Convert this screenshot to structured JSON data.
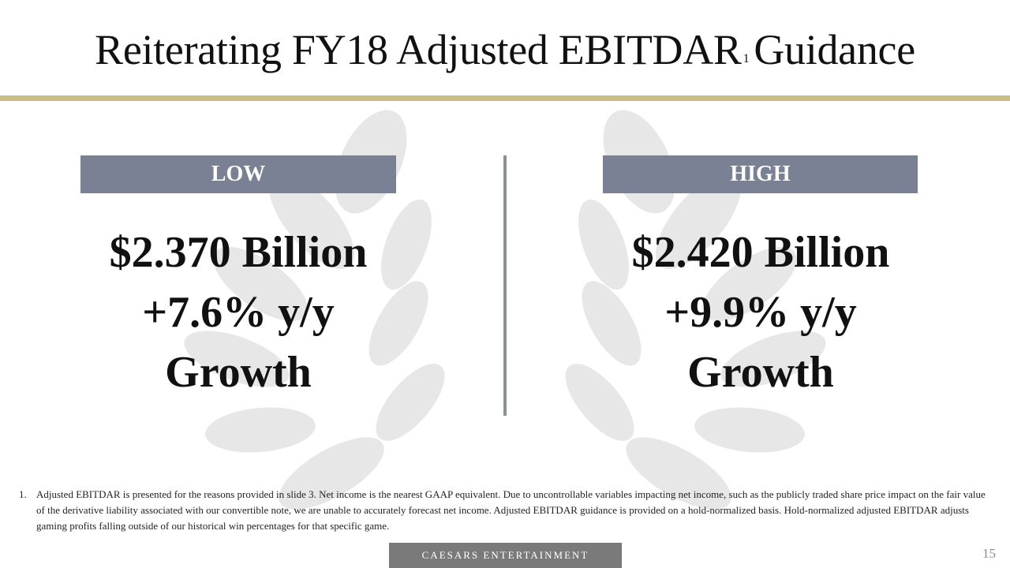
{
  "title": {
    "main": "Reiterating FY18 Adjusted EBITDAR",
    "superscript": "1",
    "tail": "Guidance"
  },
  "low": {
    "label": "LOW",
    "amount": "$2.370 Billion",
    "growth": "+7.6% y/y",
    "growth_word": "Growth"
  },
  "high": {
    "label": "HIGH",
    "amount": "$2.420 Billion",
    "growth": "+9.9% y/y",
    "growth_word": "Growth"
  },
  "footnote": {
    "number": "1.",
    "text": "Adjusted EBITDAR is presented for the reasons provided in slide 3. Net income is the nearest GAAP equivalent. Due to uncontrollable variables impacting net income, such as the publicly traded share price impact on the fair value of the derivative liability associated with our convertible note, we are unable to accurately forecast net income. Adjusted EBITDAR guidance is provided on a hold-normalized basis. Hold-normalized adjusted EBITDAR adjusts gaming profits falling outside of our historical win percentages for that specific game."
  },
  "footer": {
    "brand": "CAESARS ENTERTAINMENT",
    "page_number": "15"
  },
  "colors": {
    "gold_rule": "#cdbd83",
    "label_bg": "#7a8195",
    "footer_bg": "#7a7a7a",
    "watermark": "#e6e6e6"
  },
  "watermark_icon": "laurel-wreath-icon"
}
